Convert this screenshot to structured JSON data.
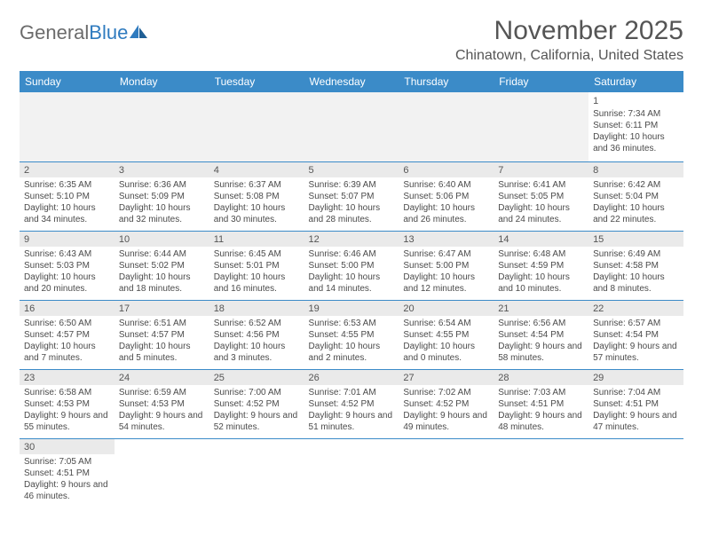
{
  "logo": {
    "word1": "General",
    "word2": "Blue"
  },
  "title": "November 2025",
  "location": "Chinatown, California, United States",
  "colors": {
    "header_bg": "#3b8bc8",
    "header_text": "#ffffff",
    "grid_line": "#3b8bc8",
    "daynum_bg": "#eaeaea",
    "text": "#4a4a4a",
    "logo_gray": "#6b6b6b",
    "logo_blue": "#2f7bbf"
  },
  "weekdays": [
    "Sunday",
    "Monday",
    "Tuesday",
    "Wednesday",
    "Thursday",
    "Friday",
    "Saturday"
  ],
  "weeks": [
    [
      null,
      null,
      null,
      null,
      null,
      null,
      {
        "n": "1",
        "sr": "Sunrise: 7:34 AM",
        "ss": "Sunset: 6:11 PM",
        "dl": "Daylight: 10 hours and 36 minutes."
      }
    ],
    [
      {
        "n": "2",
        "sr": "Sunrise: 6:35 AM",
        "ss": "Sunset: 5:10 PM",
        "dl": "Daylight: 10 hours and 34 minutes."
      },
      {
        "n": "3",
        "sr": "Sunrise: 6:36 AM",
        "ss": "Sunset: 5:09 PM",
        "dl": "Daylight: 10 hours and 32 minutes."
      },
      {
        "n": "4",
        "sr": "Sunrise: 6:37 AM",
        "ss": "Sunset: 5:08 PM",
        "dl": "Daylight: 10 hours and 30 minutes."
      },
      {
        "n": "5",
        "sr": "Sunrise: 6:39 AM",
        "ss": "Sunset: 5:07 PM",
        "dl": "Daylight: 10 hours and 28 minutes."
      },
      {
        "n": "6",
        "sr": "Sunrise: 6:40 AM",
        "ss": "Sunset: 5:06 PM",
        "dl": "Daylight: 10 hours and 26 minutes."
      },
      {
        "n": "7",
        "sr": "Sunrise: 6:41 AM",
        "ss": "Sunset: 5:05 PM",
        "dl": "Daylight: 10 hours and 24 minutes."
      },
      {
        "n": "8",
        "sr": "Sunrise: 6:42 AM",
        "ss": "Sunset: 5:04 PM",
        "dl": "Daylight: 10 hours and 22 minutes."
      }
    ],
    [
      {
        "n": "9",
        "sr": "Sunrise: 6:43 AM",
        "ss": "Sunset: 5:03 PM",
        "dl": "Daylight: 10 hours and 20 minutes."
      },
      {
        "n": "10",
        "sr": "Sunrise: 6:44 AM",
        "ss": "Sunset: 5:02 PM",
        "dl": "Daylight: 10 hours and 18 minutes."
      },
      {
        "n": "11",
        "sr": "Sunrise: 6:45 AM",
        "ss": "Sunset: 5:01 PM",
        "dl": "Daylight: 10 hours and 16 minutes."
      },
      {
        "n": "12",
        "sr": "Sunrise: 6:46 AM",
        "ss": "Sunset: 5:00 PM",
        "dl": "Daylight: 10 hours and 14 minutes."
      },
      {
        "n": "13",
        "sr": "Sunrise: 6:47 AM",
        "ss": "Sunset: 5:00 PM",
        "dl": "Daylight: 10 hours and 12 minutes."
      },
      {
        "n": "14",
        "sr": "Sunrise: 6:48 AM",
        "ss": "Sunset: 4:59 PM",
        "dl": "Daylight: 10 hours and 10 minutes."
      },
      {
        "n": "15",
        "sr": "Sunrise: 6:49 AM",
        "ss": "Sunset: 4:58 PM",
        "dl": "Daylight: 10 hours and 8 minutes."
      }
    ],
    [
      {
        "n": "16",
        "sr": "Sunrise: 6:50 AM",
        "ss": "Sunset: 4:57 PM",
        "dl": "Daylight: 10 hours and 7 minutes."
      },
      {
        "n": "17",
        "sr": "Sunrise: 6:51 AM",
        "ss": "Sunset: 4:57 PM",
        "dl": "Daylight: 10 hours and 5 minutes."
      },
      {
        "n": "18",
        "sr": "Sunrise: 6:52 AM",
        "ss": "Sunset: 4:56 PM",
        "dl": "Daylight: 10 hours and 3 minutes."
      },
      {
        "n": "19",
        "sr": "Sunrise: 6:53 AM",
        "ss": "Sunset: 4:55 PM",
        "dl": "Daylight: 10 hours and 2 minutes."
      },
      {
        "n": "20",
        "sr": "Sunrise: 6:54 AM",
        "ss": "Sunset: 4:55 PM",
        "dl": "Daylight: 10 hours and 0 minutes."
      },
      {
        "n": "21",
        "sr": "Sunrise: 6:56 AM",
        "ss": "Sunset: 4:54 PM",
        "dl": "Daylight: 9 hours and 58 minutes."
      },
      {
        "n": "22",
        "sr": "Sunrise: 6:57 AM",
        "ss": "Sunset: 4:54 PM",
        "dl": "Daylight: 9 hours and 57 minutes."
      }
    ],
    [
      {
        "n": "23",
        "sr": "Sunrise: 6:58 AM",
        "ss": "Sunset: 4:53 PM",
        "dl": "Daylight: 9 hours and 55 minutes."
      },
      {
        "n": "24",
        "sr": "Sunrise: 6:59 AM",
        "ss": "Sunset: 4:53 PM",
        "dl": "Daylight: 9 hours and 54 minutes."
      },
      {
        "n": "25",
        "sr": "Sunrise: 7:00 AM",
        "ss": "Sunset: 4:52 PM",
        "dl": "Daylight: 9 hours and 52 minutes."
      },
      {
        "n": "26",
        "sr": "Sunrise: 7:01 AM",
        "ss": "Sunset: 4:52 PM",
        "dl": "Daylight: 9 hours and 51 minutes."
      },
      {
        "n": "27",
        "sr": "Sunrise: 7:02 AM",
        "ss": "Sunset: 4:52 PM",
        "dl": "Daylight: 9 hours and 49 minutes."
      },
      {
        "n": "28",
        "sr": "Sunrise: 7:03 AM",
        "ss": "Sunset: 4:51 PM",
        "dl": "Daylight: 9 hours and 48 minutes."
      },
      {
        "n": "29",
        "sr": "Sunrise: 7:04 AM",
        "ss": "Sunset: 4:51 PM",
        "dl": "Daylight: 9 hours and 47 minutes."
      }
    ],
    [
      {
        "n": "30",
        "sr": "Sunrise: 7:05 AM",
        "ss": "Sunset: 4:51 PM",
        "dl": "Daylight: 9 hours and 46 minutes."
      },
      null,
      null,
      null,
      null,
      null,
      null
    ]
  ]
}
